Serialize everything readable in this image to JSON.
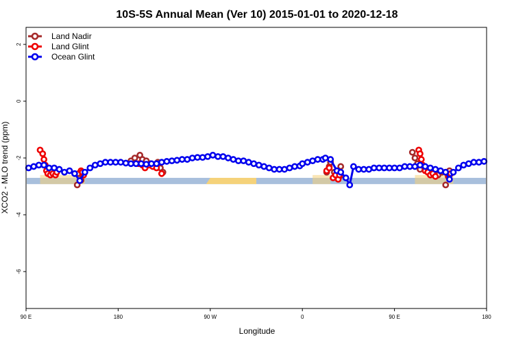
{
  "chart_data": {
    "type": "line",
    "title": "10S-5S Annual Mean (Ver 10)   2015-01-01 to 2020-12-18",
    "xlabel": "Longitude",
    "ylabel": "XCO2 - MLO trend (ppm)",
    "xlim": [
      90,
      450
    ],
    "ylim": [
      -7.3,
      2.6
    ],
    "x_ticks": [
      {
        "value": 90,
        "label": "90 E"
      },
      {
        "value": 162,
        "label": "180"
      },
      {
        "value": 234,
        "label": "90 W"
      },
      {
        "value": 306,
        "label": "0"
      },
      {
        "value": 378,
        "label": "90 E"
      },
      {
        "value": 450,
        "label": "180"
      }
    ],
    "y_ticks": [
      2,
      0,
      -2,
      -4,
      -6
    ],
    "grid": false,
    "legend_position": "top-left",
    "legend": [
      "Land Nadir",
      "Land Glint",
      "Ocean Glint"
    ],
    "series": [
      {
        "name": "Land Nadir",
        "color": "#a52a2a",
        "points": [
          [
            130,
            -2.95
          ],
          [
            131,
            -2.55
          ],
          [
            133,
            -2.78
          ],
          [
            134,
            -2.6
          ],
          [
            172,
            -2.1
          ],
          [
            175,
            -2.0
          ],
          [
            179,
            -1.9
          ],
          [
            181,
            -2.05
          ],
          [
            184,
            -2.1
          ],
          [
            187,
            -2.2
          ],
          [
            190,
            -2.3
          ],
          [
            193,
            -2.15
          ],
          [
            195,
            -2.35
          ],
          [
            197,
            -2.5
          ],
          [
            325,
            -2.5
          ],
          [
            327,
            -2.3
          ],
          [
            328,
            -2.15
          ],
          [
            331,
            -2.5
          ],
          [
            333,
            -2.7
          ],
          [
            335,
            -2.65
          ],
          [
            336,
            -2.3
          ],
          [
            392,
            -1.8
          ],
          [
            394,
            -2.0
          ],
          [
            396,
            -2.2
          ],
          [
            398,
            -2.4
          ],
          [
            403,
            -2.45
          ],
          [
            408,
            -2.5
          ],
          [
            412,
            -2.6
          ],
          [
            415,
            -2.5
          ],
          [
            418,
            -2.95
          ],
          [
            420,
            -2.65
          ],
          [
            421,
            -2.45
          ]
        ]
      },
      {
        "name": "Land Glint",
        "color": "#ee0000",
        "points": [
          [
            101,
            -1.72
          ],
          [
            103,
            -1.85
          ],
          [
            104,
            -2.05
          ],
          [
            105,
            -2.25
          ],
          [
            106,
            -2.45
          ],
          [
            107,
            -2.55
          ],
          [
            109,
            -2.6
          ],
          [
            111,
            -2.55
          ],
          [
            113,
            -2.6
          ],
          [
            114,
            -2.5
          ],
          [
            133,
            -2.45
          ],
          [
            135,
            -2.6
          ],
          [
            134,
            -2.5
          ],
          [
            178,
            -2.2
          ],
          [
            181,
            -2.25
          ],
          [
            183,
            -2.35
          ],
          [
            186,
            -2.25
          ],
          [
            189,
            -2.3
          ],
          [
            192,
            -2.35
          ],
          [
            196,
            -2.55
          ],
          [
            325,
            -2.45
          ],
          [
            327,
            -2.35
          ],
          [
            330,
            -2.7
          ],
          [
            332,
            -2.6
          ],
          [
            334,
            -2.75
          ],
          [
            335,
            -2.6
          ],
          [
            397,
            -1.72
          ],
          [
            398,
            -1.85
          ],
          [
            399,
            -2.05
          ],
          [
            400,
            -2.25
          ],
          [
            402,
            -2.45
          ],
          [
            404,
            -2.5
          ],
          [
            406,
            -2.6
          ],
          [
            408,
            -2.55
          ],
          [
            410,
            -2.65
          ],
          [
            418,
            -2.5
          ],
          [
            420,
            -2.6
          ],
          [
            422,
            -2.55
          ]
        ]
      },
      {
        "name": "Ocean Glint",
        "color": "#0000ee",
        "points": [
          [
            92,
            -2.35
          ],
          [
            96,
            -2.3
          ],
          [
            100,
            -2.25
          ],
          [
            104,
            -2.25
          ],
          [
            108,
            -2.35
          ],
          [
            112,
            -2.35
          ],
          [
            116,
            -2.4
          ],
          [
            120,
            -2.5
          ],
          [
            124,
            -2.45
          ],
          [
            128,
            -2.55
          ],
          [
            132,
            -2.8
          ],
          [
            136,
            -2.5
          ],
          [
            140,
            -2.35
          ],
          [
            144,
            -2.25
          ],
          [
            148,
            -2.2
          ],
          [
            152,
            -2.15
          ],
          [
            156,
            -2.15
          ],
          [
            160,
            -2.15
          ],
          [
            164,
            -2.15
          ],
          [
            168,
            -2.18
          ],
          [
            172,
            -2.2
          ],
          [
            176,
            -2.2
          ],
          [
            180,
            -2.2
          ],
          [
            184,
            -2.22
          ],
          [
            188,
            -2.2
          ],
          [
            192,
            -2.2
          ],
          [
            196,
            -2.15
          ],
          [
            200,
            -2.12
          ],
          [
            204,
            -2.1
          ],
          [
            208,
            -2.08
          ],
          [
            212,
            -2.05
          ],
          [
            216,
            -2.05
          ],
          [
            220,
            -2.0
          ],
          [
            224,
            -1.98
          ],
          [
            228,
            -1.98
          ],
          [
            232,
            -1.95
          ],
          [
            236,
            -1.9
          ],
          [
            240,
            -1.95
          ],
          [
            244,
            -1.95
          ],
          [
            248,
            -2.0
          ],
          [
            252,
            -2.05
          ],
          [
            256,
            -2.1
          ],
          [
            260,
            -2.1
          ],
          [
            264,
            -2.15
          ],
          [
            268,
            -2.2
          ],
          [
            272,
            -2.25
          ],
          [
            276,
            -2.3
          ],
          [
            280,
            -2.35
          ],
          [
            284,
            -2.4
          ],
          [
            288,
            -2.4
          ],
          [
            292,
            -2.4
          ],
          [
            296,
            -2.35
          ],
          [
            300,
            -2.3
          ],
          [
            304,
            -2.28
          ],
          [
            306,
            -2.2
          ],
          [
            310,
            -2.15
          ],
          [
            314,
            -2.1
          ],
          [
            318,
            -2.05
          ],
          [
            322,
            -2.05
          ],
          [
            324,
            -2.0
          ],
          [
            328,
            -2.05
          ],
          [
            333,
            -2.45
          ],
          [
            336,
            -2.5
          ],
          [
            340,
            -2.7
          ],
          [
            343,
            -2.95
          ],
          [
            346,
            -2.3
          ],
          [
            350,
            -2.4
          ],
          [
            354,
            -2.4
          ],
          [
            358,
            -2.4
          ],
          [
            362,
            -2.35
          ],
          [
            366,
            -2.35
          ],
          [
            370,
            -2.35
          ],
          [
            374,
            -2.35
          ],
          [
            378,
            -2.35
          ],
          [
            382,
            -2.35
          ],
          [
            386,
            -2.3
          ],
          [
            390,
            -2.3
          ],
          [
            394,
            -2.3
          ],
          [
            398,
            -2.25
          ],
          [
            402,
            -2.3
          ],
          [
            406,
            -2.35
          ],
          [
            410,
            -2.4
          ],
          [
            414,
            -2.45
          ],
          [
            418,
            -2.5
          ],
          [
            421,
            -2.75
          ],
          [
            424,
            -2.5
          ],
          [
            428,
            -2.35
          ],
          [
            432,
            -2.25
          ],
          [
            436,
            -2.2
          ],
          [
            440,
            -2.15
          ],
          [
            444,
            -2.15
          ],
          [
            448,
            -2.12
          ]
        ]
      }
    ],
    "background_colors": {
      "ocean_band": "#a8bfdc",
      "land_band": "#f5d27a"
    }
  }
}
